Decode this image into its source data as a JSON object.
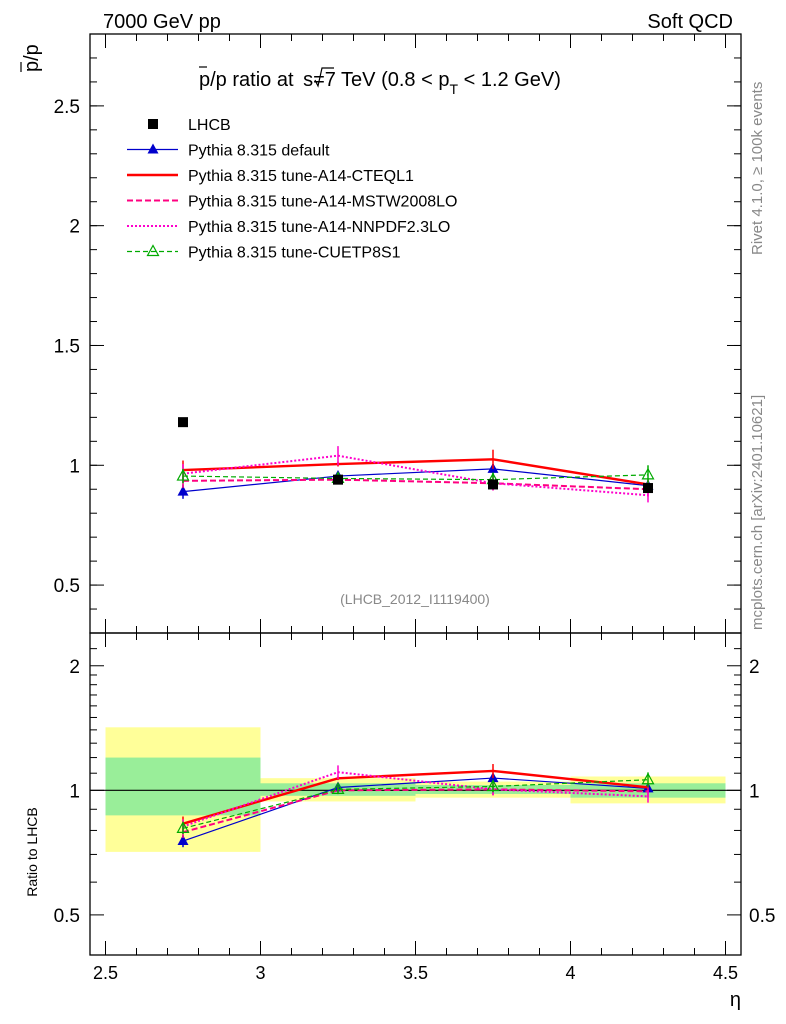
{
  "header": {
    "left": "7000 GeV pp",
    "right": "Soft QCD"
  },
  "side": {
    "rivet": "Rivet 4.1.0, ≥ 100k events",
    "mcplots": "mcplots.cern.ch [arXiv:2401.10621]"
  },
  "chart_data": {
    "type": "line",
    "title": "p̅/p ratio at √s=7 TeV (0.8 < pT < 1.2 GeV)",
    "title_parts": {
      "main": "p/p ratio at ",
      "rt": "s",
      "eq": "=7 TeV (0.8 < p",
      "sub": "T",
      "tail": " < 1.2 GeV)"
    },
    "ylabel_num": "p",
    "ylabel_den": "/p",
    "xlabel": "η",
    "ratio_ylabel": "Ratio to LHCB",
    "watermark": "(LHCB_2012_I1119400)",
    "x": [
      2.75,
      3.25,
      3.75,
      4.25
    ],
    "x_edges": [
      2.5,
      3.0,
      3.5,
      4.0,
      4.5
    ],
    "xlim": [
      2.45,
      4.55
    ],
    "ylim": [
      0.3,
      2.8
    ],
    "ratio_ylim": [
      0.4,
      2.4
    ],
    "xticks": [
      "2.5",
      "3",
      "3.5",
      "4",
      "4.5"
    ],
    "xtick_values": [
      2.5,
      3.0,
      3.5,
      4.0,
      4.5
    ],
    "yticks": [
      "0.5",
      "1",
      "1.5",
      "2",
      "2.5"
    ],
    "ytick_values": [
      0.5,
      1.0,
      1.5,
      2.0,
      2.5
    ],
    "ratio_yticks": [
      "0.5",
      "1",
      "2"
    ],
    "ratio_ytick_values": [
      0.5,
      1.0,
      2.0
    ],
    "reference": {
      "name": "LHCB",
      "values": [
        1.18,
        0.94,
        0.92,
        0.905
      ],
      "band_inner": [
        [
          0.87,
          1.2
        ],
        [
          0.97,
          1.04
        ],
        [
          0.98,
          1.03
        ],
        [
          0.96,
          1.04
        ]
      ],
      "band_outer": [
        [
          0.71,
          1.42
        ],
        [
          0.94,
          1.07
        ],
        [
          0.96,
          1.05
        ],
        [
          0.93,
          1.08
        ]
      ]
    },
    "series": [
      {
        "name": "Pythia 8.315 default",
        "color": "#0000cc",
        "dash": "",
        "marker": "triangle",
        "width": 1.2,
        "values": [
          0.89,
          0.955,
          0.985,
          0.915
        ],
        "errors": [
          0.03,
          0.01,
          0.02,
          0.02
        ]
      },
      {
        "name": "Pythia 8.315 tune-A14-CTEQL1",
        "color": "#ff0000",
        "dash": "",
        "marker": "none",
        "width": 2.4,
        "values": [
          0.98,
          1.005,
          1.025,
          0.92
        ],
        "errors": [
          0.04,
          0.01,
          0.04,
          0.02
        ]
      },
      {
        "name": "Pythia 8.315 tune-A14-MSTW2008LO",
        "color": "#ff0080",
        "dash": "6,3",
        "marker": "none",
        "width": 2.0,
        "values": [
          0.935,
          0.94,
          0.925,
          0.9
        ],
        "errors": [
          0.03,
          0.02,
          0.03,
          0.03
        ]
      },
      {
        "name": "Pythia 8.315 tune-A14-NNPDF2.3LO",
        "color": "#ff00cc",
        "dash": "2,2",
        "marker": "none",
        "width": 2.0,
        "values": [
          0.965,
          1.04,
          0.925,
          0.875
        ],
        "errors": [
          0.04,
          0.04,
          0.03,
          0.03
        ]
      },
      {
        "name": "Pythia 8.315 tune-CUETP8S1",
        "color": "#00aa00",
        "dash": "5,3",
        "marker": "triangle-open",
        "width": 1.2,
        "values": [
          0.955,
          0.945,
          0.94,
          0.96
        ],
        "errors": [
          0.03,
          0.02,
          0.03,
          0.04
        ]
      }
    ]
  }
}
